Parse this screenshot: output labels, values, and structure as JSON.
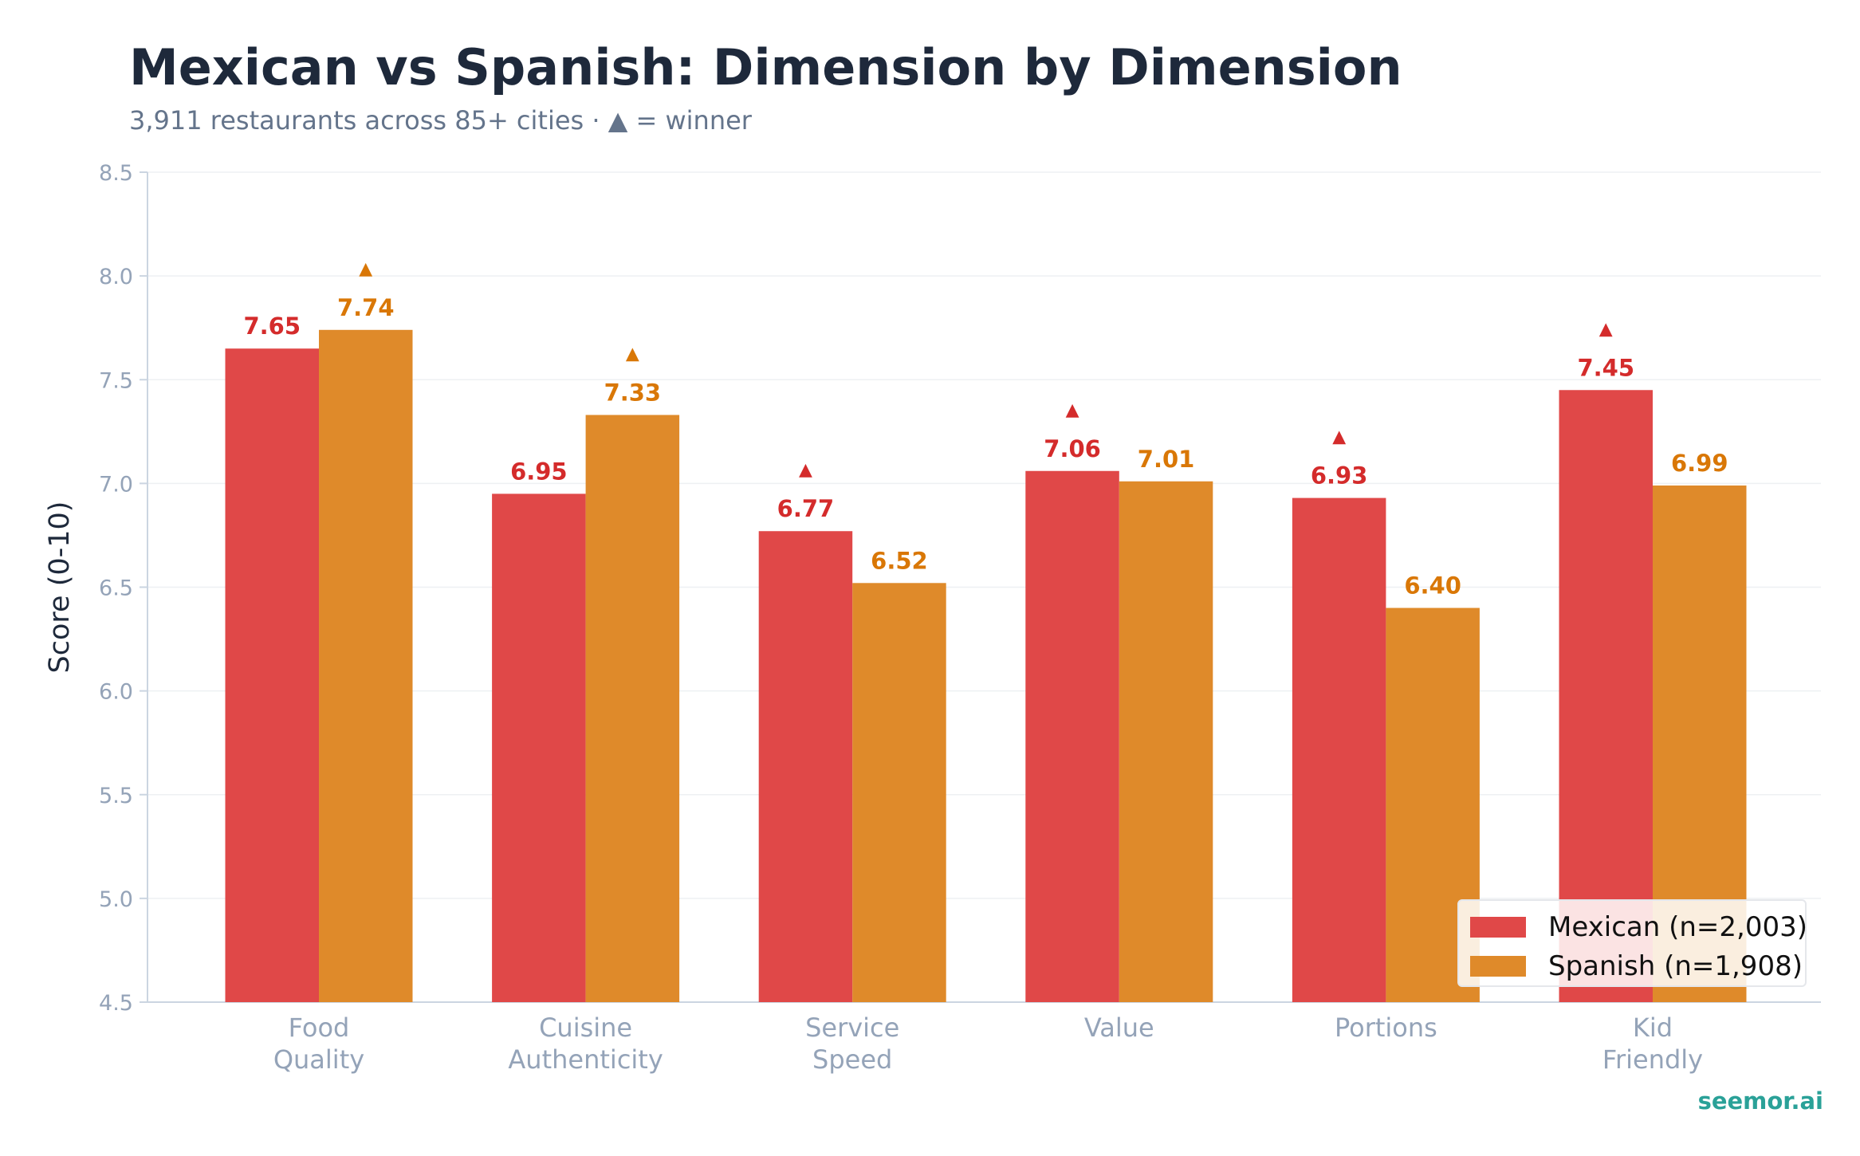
{
  "header": {
    "title": "Mexican vs Spanish: Dimension by Dimension",
    "subtitle_text": "3,911 restaurants across 85+ cities  ·  ",
    "subtitle_marker": "▲",
    "subtitle_suffix": " = winner"
  },
  "footer": {
    "brand": "seemor.ai"
  },
  "colors": {
    "mexican": "#e04848",
    "spanish": "#df8a2a",
    "mexican_label": "#d42b2b",
    "spanish_label": "#d97706"
  },
  "chart_data": {
    "type": "bar",
    "title": "Mexican vs Spanish: Dimension by Dimension",
    "ylabel": "Score (0-10)",
    "xlabel": "",
    "ylim": [
      4.5,
      8.5
    ],
    "yticks": [
      "4.5",
      "5.0",
      "5.5",
      "6.0",
      "6.5",
      "7.0",
      "7.5",
      "8.0",
      "8.5"
    ],
    "grid": true,
    "legend_position": "bottom-right",
    "winner_marker": "▲",
    "categories": [
      [
        "Food",
        "Quality"
      ],
      [
        "Cuisine",
        "Authenticity"
      ],
      [
        "Service",
        "Speed"
      ],
      [
        "Value"
      ],
      [
        "Portions"
      ],
      [
        "Kid",
        "Friendly"
      ]
    ],
    "series": [
      {
        "name": "Mexican (n=2,003)",
        "values": [
          7.65,
          6.95,
          6.77,
          7.06,
          6.93,
          7.45
        ],
        "labels": [
          "7.65",
          "6.95",
          "6.77",
          "7.06",
          "6.93",
          "7.45"
        ]
      },
      {
        "name": "Spanish (n=1,908)",
        "values": [
          7.74,
          7.33,
          6.52,
          7.01,
          6.4,
          6.99
        ],
        "labels": [
          "7.74",
          "7.33",
          "6.52",
          "7.01",
          "6.40",
          "6.99"
        ]
      }
    ],
    "winners": [
      "Spanish",
      "Spanish",
      "Mexican",
      "Mexican",
      "Mexican",
      "Mexican"
    ]
  }
}
